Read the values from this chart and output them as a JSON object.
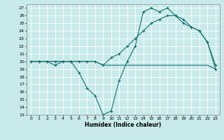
{
  "xlabel": "Humidex (Indice chaleur)",
  "bg_color": "#c8eaea",
  "grid_color": "#ffffff",
  "line_color": "#1a7070",
  "xlim": [
    -0.5,
    23.5
  ],
  "ylim": [
    13,
    27.5
  ],
  "xticks": [
    0,
    1,
    2,
    3,
    4,
    5,
    6,
    7,
    8,
    9,
    10,
    11,
    12,
    13,
    14,
    15,
    16,
    17,
    18,
    19,
    20,
    21,
    22,
    23
  ],
  "yticks": [
    13,
    14,
    15,
    16,
    17,
    18,
    19,
    20,
    21,
    22,
    23,
    24,
    25,
    26,
    27
  ],
  "line1_x": [
    0,
    1,
    2,
    3,
    4,
    5,
    6,
    7,
    8,
    9,
    10,
    11,
    12,
    13,
    14,
    15,
    16,
    17,
    18,
    19,
    20,
    21,
    22,
    23
  ],
  "line1_y": [
    20,
    20,
    20,
    19.5,
    20,
    20,
    18.5,
    16.5,
    15.5,
    13,
    13.5,
    17.5,
    20,
    22,
    26.5,
    27,
    26.5,
    27,
    26,
    25.5,
    24.5,
    24,
    22.5,
    19
  ],
  "line2_x": [
    0,
    1,
    2,
    3,
    4,
    5,
    6,
    7,
    8,
    9,
    10,
    11,
    12,
    13,
    14,
    15,
    16,
    17,
    18,
    19,
    20,
    21,
    22,
    23
  ],
  "line2_y": [
    20,
    20,
    20,
    20,
    20,
    20,
    20,
    20,
    20,
    19.5,
    20.5,
    21,
    22,
    23,
    24,
    25,
    25.5,
    26,
    26,
    25,
    24.5,
    24,
    22.5,
    19.5
  ],
  "line3_x": [
    0,
    1,
    2,
    3,
    4,
    5,
    6,
    7,
    8,
    9,
    10,
    11,
    12,
    13,
    14,
    15,
    16,
    17,
    18,
    19,
    20,
    21,
    22,
    23
  ],
  "line3_y": [
    20,
    20,
    20,
    20,
    20,
    20,
    20,
    20,
    20,
    19.5,
    19.5,
    19.5,
    19.5,
    19.5,
    19.5,
    19.5,
    19.5,
    19.5,
    19.5,
    19.5,
    19.5,
    19.5,
    19.5,
    19
  ]
}
